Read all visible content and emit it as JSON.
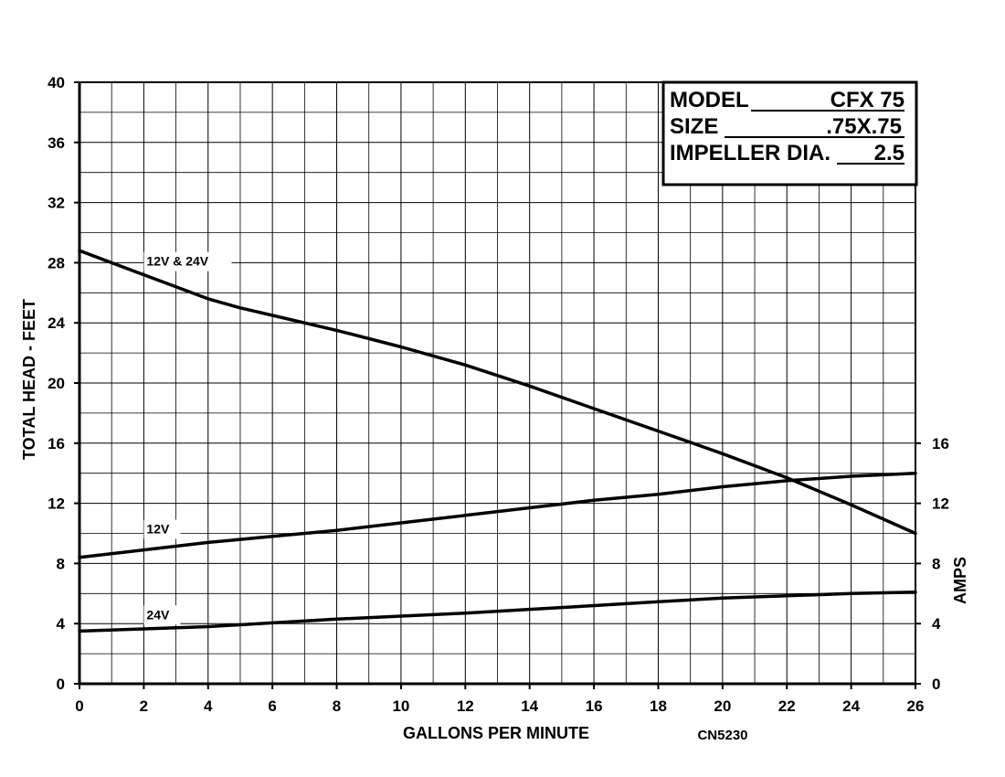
{
  "chart_data": {
    "type": "line",
    "xlabel": "GALLONS PER MINUTE",
    "ylabel": "TOTAL HEAD - FEET",
    "y2label": "AMPS",
    "xlim": [
      0,
      26
    ],
    "ylim": [
      0,
      40
    ],
    "y2lim": [
      0,
      40
    ],
    "x_ticks": [
      0,
      2,
      4,
      6,
      8,
      10,
      12,
      14,
      16,
      18,
      20,
      22,
      24,
      26
    ],
    "y_ticks": [
      0,
      4,
      8,
      12,
      16,
      20,
      24,
      28,
      32,
      36,
      40
    ],
    "y2_ticks": [
      0,
      4,
      8,
      12,
      16
    ],
    "grid": true,
    "code_label": "CN5230",
    "info_box": {
      "model_label": "MODEL",
      "model_value": "CFX 75",
      "size_label": "SIZE",
      "size_value": ".75X.75",
      "impeller_label": "IMPELLER DIA.",
      "impeller_value": "2.5"
    },
    "series": [
      {
        "name": "12V & 24V",
        "axis": "left",
        "x": [
          0,
          2,
          4,
          5,
          6,
          8,
          10,
          12,
          14,
          16,
          18,
          20,
          22,
          24,
          26
        ],
        "y": [
          28.8,
          27.2,
          25.6,
          25.0,
          24.5,
          23.5,
          22.4,
          21.2,
          19.8,
          18.3,
          16.8,
          15.3,
          13.7,
          11.9,
          10.0
        ]
      },
      {
        "name": "12V",
        "axis": "right",
        "x": [
          0,
          2,
          4,
          6,
          8,
          10,
          12,
          14,
          16,
          18,
          20,
          22,
          24,
          26
        ],
        "y": [
          8.4,
          8.9,
          9.4,
          9.8,
          10.2,
          10.7,
          11.2,
          11.7,
          12.2,
          12.6,
          13.1,
          13.5,
          13.8,
          14.0
        ]
      },
      {
        "name": "24V",
        "axis": "right",
        "x": [
          0,
          2,
          4,
          6,
          8,
          10,
          12,
          14,
          16,
          18,
          20,
          22,
          24,
          26
        ],
        "y": [
          3.5,
          3.65,
          3.8,
          4.05,
          4.3,
          4.5,
          4.7,
          4.95,
          5.2,
          5.45,
          5.7,
          5.85,
          6.0,
          6.1
        ]
      }
    ]
  }
}
